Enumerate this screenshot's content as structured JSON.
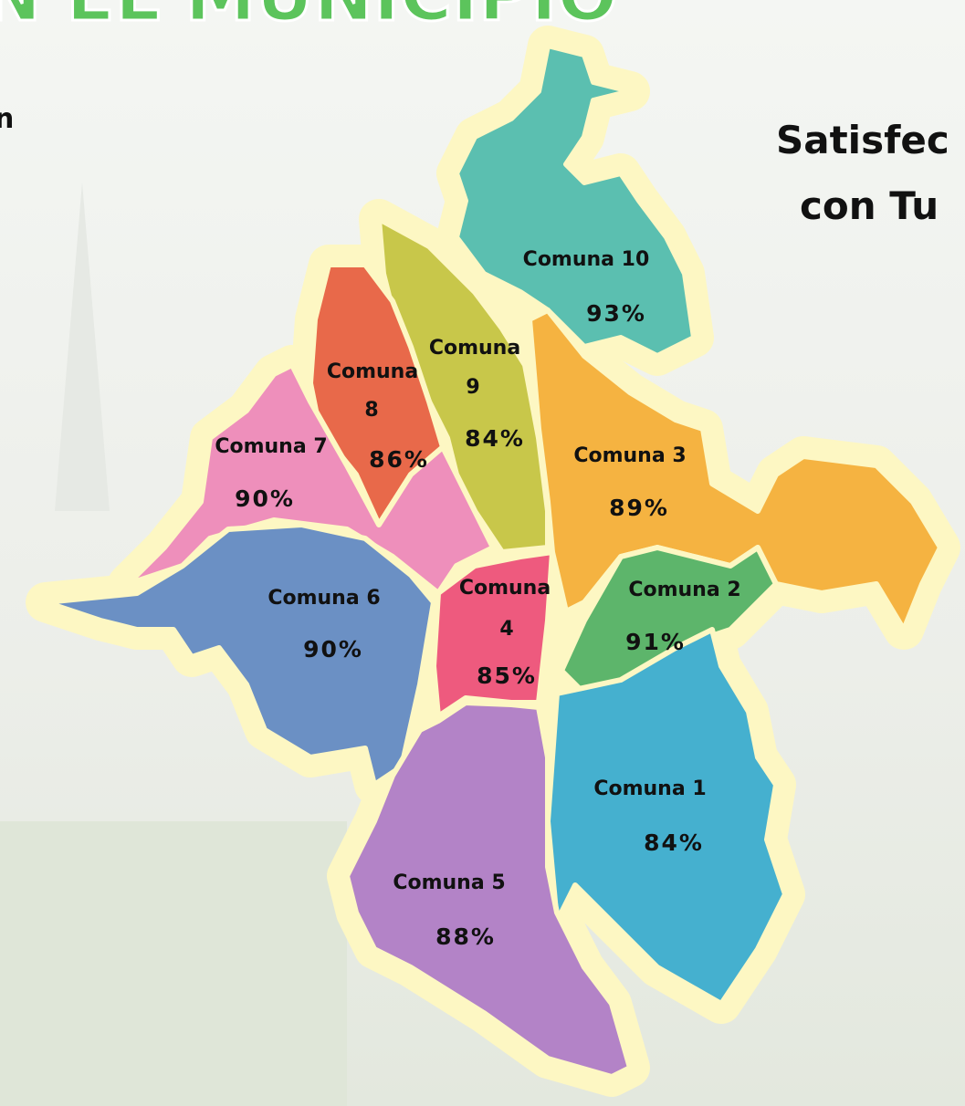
{
  "header": {
    "title": "N EL MUNICIPIO",
    "left_text": "n",
    "right_lines": [
      "Satisfec",
      "con Tu"
    ]
  },
  "comunas": [
    {
      "lines": [
        "Comuna 10"
      ],
      "percent": "93%"
    },
    {
      "lines": [
        "Comuna",
        "9"
      ],
      "percent": "84%"
    },
    {
      "lines": [
        "Comuna",
        "8"
      ],
      "percent": "86%"
    },
    {
      "lines": [
        "Comuna 7"
      ],
      "percent": "90%"
    },
    {
      "lines": [
        "Comuna 6"
      ],
      "percent": "90%"
    },
    {
      "lines": [
        "Comuna",
        "4"
      ],
      "percent": "85%"
    },
    {
      "lines": [
        "Comuna 3"
      ],
      "percent": "89%"
    },
    {
      "lines": [
        "Comuna 2"
      ],
      "percent": "91%"
    },
    {
      "lines": [
        "Comuna 1"
      ],
      "percent": "84%"
    },
    {
      "lines": [
        "Comuna 5"
      ],
      "percent": "88%"
    }
  ]
}
